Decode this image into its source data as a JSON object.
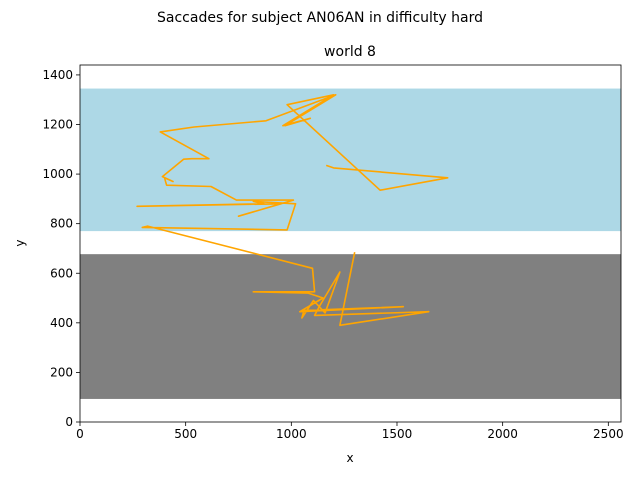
{
  "chart_data": {
    "type": "line",
    "suptitle": "Saccades for subject AN06AN in difficulty hard",
    "title": "world 8",
    "xlabel": "x",
    "ylabel": "y",
    "xlim": [
      0,
      2560
    ],
    "ylim": [
      0,
      1440
    ],
    "xticks": [
      0,
      500,
      1000,
      1500,
      2000,
      2500
    ],
    "yticks": [
      0,
      200,
      400,
      600,
      800,
      1000,
      1200,
      1400
    ],
    "regions": [
      {
        "name": "",
        "color": "#add8e6",
        "y_range": [
          770,
          1345
        ]
      },
      {
        "name": "",
        "color": "#808080",
        "y_range": [
          93,
          677
        ]
      }
    ],
    "series": [
      {
        "name": "",
        "color": "#ffa500",
        "x": [
          1300,
          1230,
          1650,
          1110,
          1135,
          1230,
          1160,
          1105,
          1050,
          1060,
          1530,
          1040,
          1150,
          1080,
          820,
          1110,
          1100,
          320,
          295,
          980,
          1020,
          820,
          870,
          270,
          950,
          750,
          1010,
          740,
          620,
          410,
          400,
          440,
          390,
          490,
          530,
          610,
          380,
          540,
          880,
          1210,
          970,
          1090,
          960,
          1200,
          980,
          1420,
          1740,
          1200,
          1165
        ],
        "y": [
          685,
          390,
          445,
          430,
          470,
          605,
          440,
          490,
          420,
          450,
          465,
          445,
          500,
          520,
          525,
          525,
          620,
          790,
          785,
          775,
          880,
          890,
          880,
          870,
          880,
          830,
          895,
          895,
          950,
          955,
          985,
          970,
          990,
          1060,
          1062,
          1062,
          1170,
          1190,
          1215,
          1320,
          1195,
          1225,
          1195,
          1320,
          1280,
          935,
          985,
          1025,
          1035
        ]
      }
    ]
  }
}
